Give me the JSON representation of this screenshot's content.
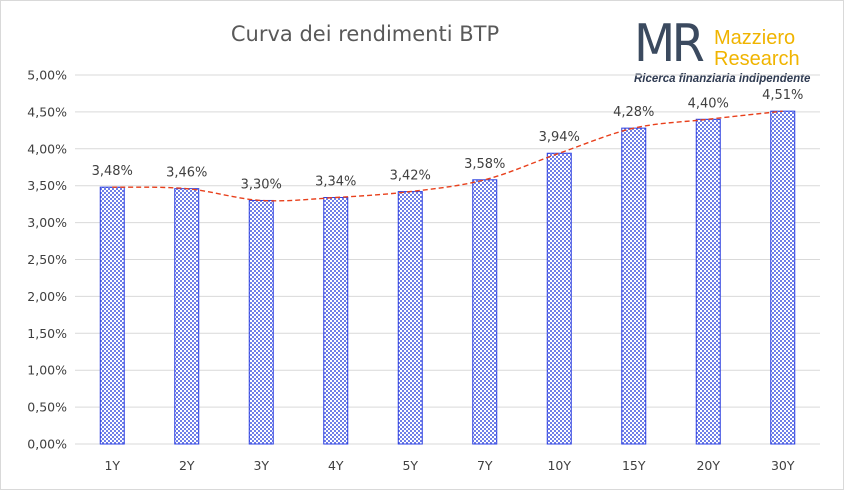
{
  "chart_data": {
    "type": "bar",
    "title": "Curva dei rendimenti BTP",
    "categories": [
      "1Y",
      "2Y",
      "3Y",
      "4Y",
      "5Y",
      "7Y",
      "10Y",
      "15Y",
      "20Y",
      "30Y"
    ],
    "values": [
      3.48,
      3.46,
      3.3,
      3.34,
      3.42,
      3.58,
      3.94,
      4.28,
      4.4,
      4.51
    ],
    "data_labels": [
      "3,48%",
      "3,46%",
      "3,30%",
      "3,34%",
      "3,42%",
      "3,58%",
      "3,94%",
      "4,28%",
      "4,40%",
      "4,51%"
    ],
    "y_ticks": [
      0,
      0.5,
      1.0,
      1.5,
      2.0,
      2.5,
      3.0,
      3.5,
      4.0,
      4.5,
      5.0
    ],
    "y_tick_labels": [
      "0,00%",
      "0,50%",
      "1,00%",
      "1,50%",
      "2,00%",
      "2,50%",
      "3,00%",
      "3,50%",
      "4,00%",
      "4,50%",
      "5,00%"
    ],
    "ylim": [
      0,
      5
    ],
    "grid": true,
    "trendline": "dashed smooth line through bar tops",
    "colors": {
      "bar_fill": "#c9cdf5",
      "bar_stroke": "#2b3fe0",
      "trend": "#e8401c",
      "grid": "#d9d9d9"
    }
  },
  "logo": {
    "mark": "MR",
    "name_line1": "Mazziero",
    "name_line2": "Research",
    "tagline": "Ricerca finanziaria indipendente"
  }
}
